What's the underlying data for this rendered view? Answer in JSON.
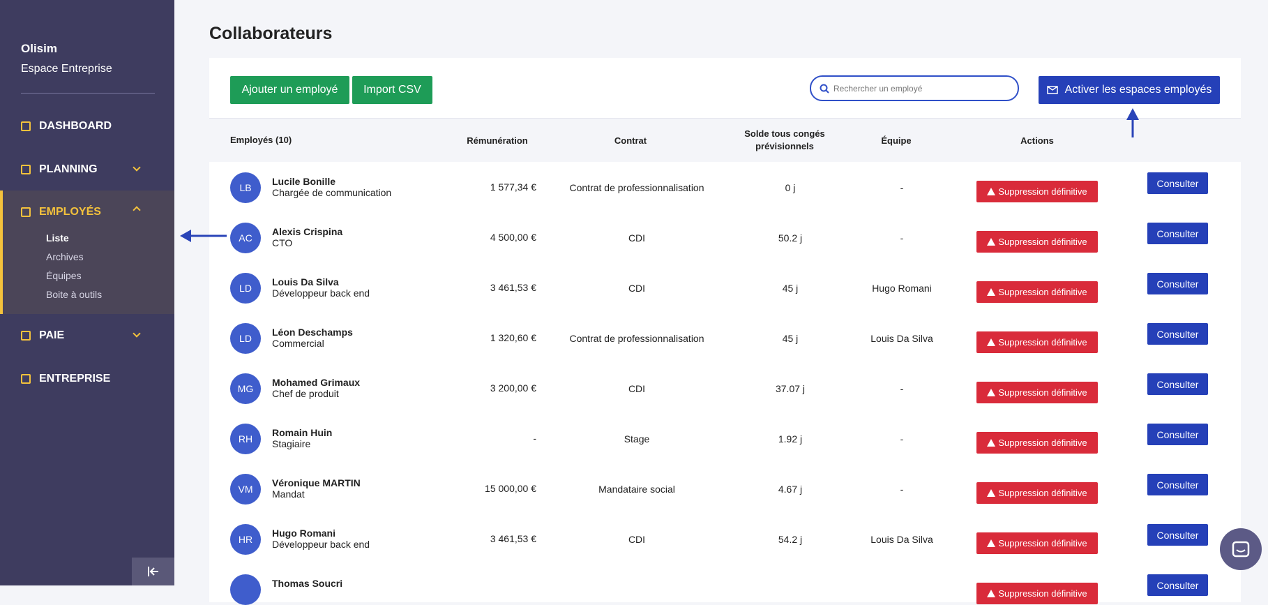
{
  "sidebar": {
    "brand": "Olisim",
    "subtitle": "Espace Entreprise",
    "nav": [
      {
        "label": "DASHBOARD"
      },
      {
        "label": "PLANNING"
      },
      {
        "label": "EMPLOYÉS",
        "children": [
          "Liste",
          "Archives",
          "Équipes",
          "Boite à outils"
        ]
      },
      {
        "label": "PAIE"
      },
      {
        "label": "ENTREPRISE"
      }
    ]
  },
  "header": {
    "title": "Collaborateurs"
  },
  "toolbar": {
    "add": "Ajouter un employé",
    "import": "Import CSV",
    "search_placeholder": "Rechercher un employé",
    "activate": "Activer les espaces employés"
  },
  "table": {
    "columns": [
      "Employés (10)",
      "Rémunération",
      "Contrat",
      "Solde tous congés prévisionnels",
      "Équipe",
      "Actions"
    ],
    "actions": {
      "delete": "Suppression définitive",
      "view": "Consulter"
    },
    "rows": [
      {
        "initials": "LB",
        "name": "Lucile Bonille",
        "role": "Chargée de communication",
        "pay": "1 577,34 €",
        "contract": "Contrat de professionnalisation",
        "balance": "0 j",
        "team": "-"
      },
      {
        "initials": "AC",
        "name": "Alexis Crispina",
        "role": "CTO",
        "pay": "4 500,00 €",
        "contract": "CDI",
        "balance": "50.2 j",
        "team": "-"
      },
      {
        "initials": "LD",
        "name": "Louis Da Silva",
        "role": "Développeur back end",
        "pay": "3 461,53 €",
        "contract": "CDI",
        "balance": "45 j",
        "team": "Hugo Romani"
      },
      {
        "initials": "LD",
        "name": "Léon Deschamps",
        "role": "Commercial",
        "pay": "1 320,60 €",
        "contract": "Contrat de professionnalisation",
        "balance": "45 j",
        "team": "Louis Da Silva"
      },
      {
        "initials": "MG",
        "name": "Mohamed Grimaux",
        "role": "Chef de produit",
        "pay": "3 200,00 €",
        "contract": "CDI",
        "balance": "37.07 j",
        "team": "-"
      },
      {
        "initials": "RH",
        "name": "Romain Huin",
        "role": "Stagiaire",
        "pay": "-",
        "contract": "Stage",
        "balance": "1.92 j",
        "team": "-"
      },
      {
        "initials": "VM",
        "name": "Véronique MARTIN",
        "role": "Mandat",
        "pay": "15 000,00 €",
        "contract": "Mandataire social",
        "balance": "4.67 j",
        "team": "-"
      },
      {
        "initials": "HR",
        "name": "Hugo Romani",
        "role": "Développeur back end",
        "pay": "3 461,53 €",
        "contract": "CDI",
        "balance": "54.2 j",
        "team": "Louis Da Silva"
      },
      {
        "name": "Thomas Soucri"
      }
    ]
  }
}
